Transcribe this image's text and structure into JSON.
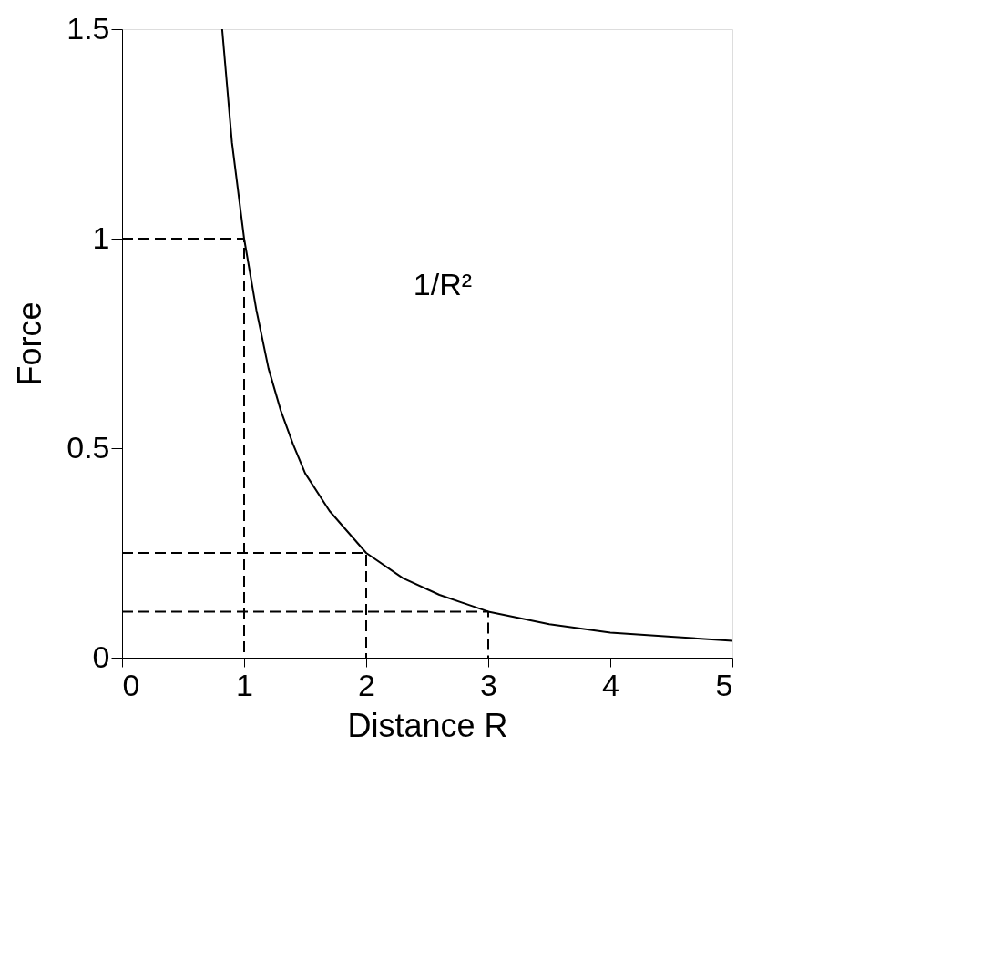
{
  "chart_data": {
    "type": "line",
    "xlabel": "Distance R",
    "ylabel": "Force",
    "annotations": [
      "1/R²"
    ],
    "xlim": [
      0,
      5
    ],
    "xticks": [
      0,
      1,
      2,
      3,
      4,
      5
    ],
    "ylim": [
      0,
      1.5
    ],
    "yticks": [
      0,
      0.5,
      1,
      1.5
    ],
    "grid": false,
    "series": [
      {
        "color": "#000000",
        "line_style": "solid",
        "x": [
          0.82,
          0.9,
          1,
          1.1,
          1.2,
          1.3,
          1.4,
          1.5,
          1.7,
          2,
          2.3,
          2.6,
          3,
          3.5,
          4,
          4.5,
          5
        ],
        "values": [
          1.5,
          1.23,
          1,
          0.83,
          0.69,
          0.59,
          0.51,
          0.44,
          0.35,
          0.25,
          0.19,
          0.15,
          0.11,
          0.08,
          0.06,
          0.05,
          0.04
        ]
      },
      {
        "color": "#000000",
        "line_style": "dashed",
        "x": [
          0,
          1,
          1
        ],
        "values": [
          1,
          1,
          0
        ]
      },
      {
        "color": "#000000",
        "line_style": "dashed",
        "x": [
          0,
          2,
          2
        ],
        "values": [
          0.25,
          0.25,
          0
        ]
      },
      {
        "color": "#000000",
        "line_style": "dashed",
        "x": [
          0,
          3,
          3
        ],
        "values": [
          0.11,
          0.11,
          0
        ]
      }
    ]
  }
}
